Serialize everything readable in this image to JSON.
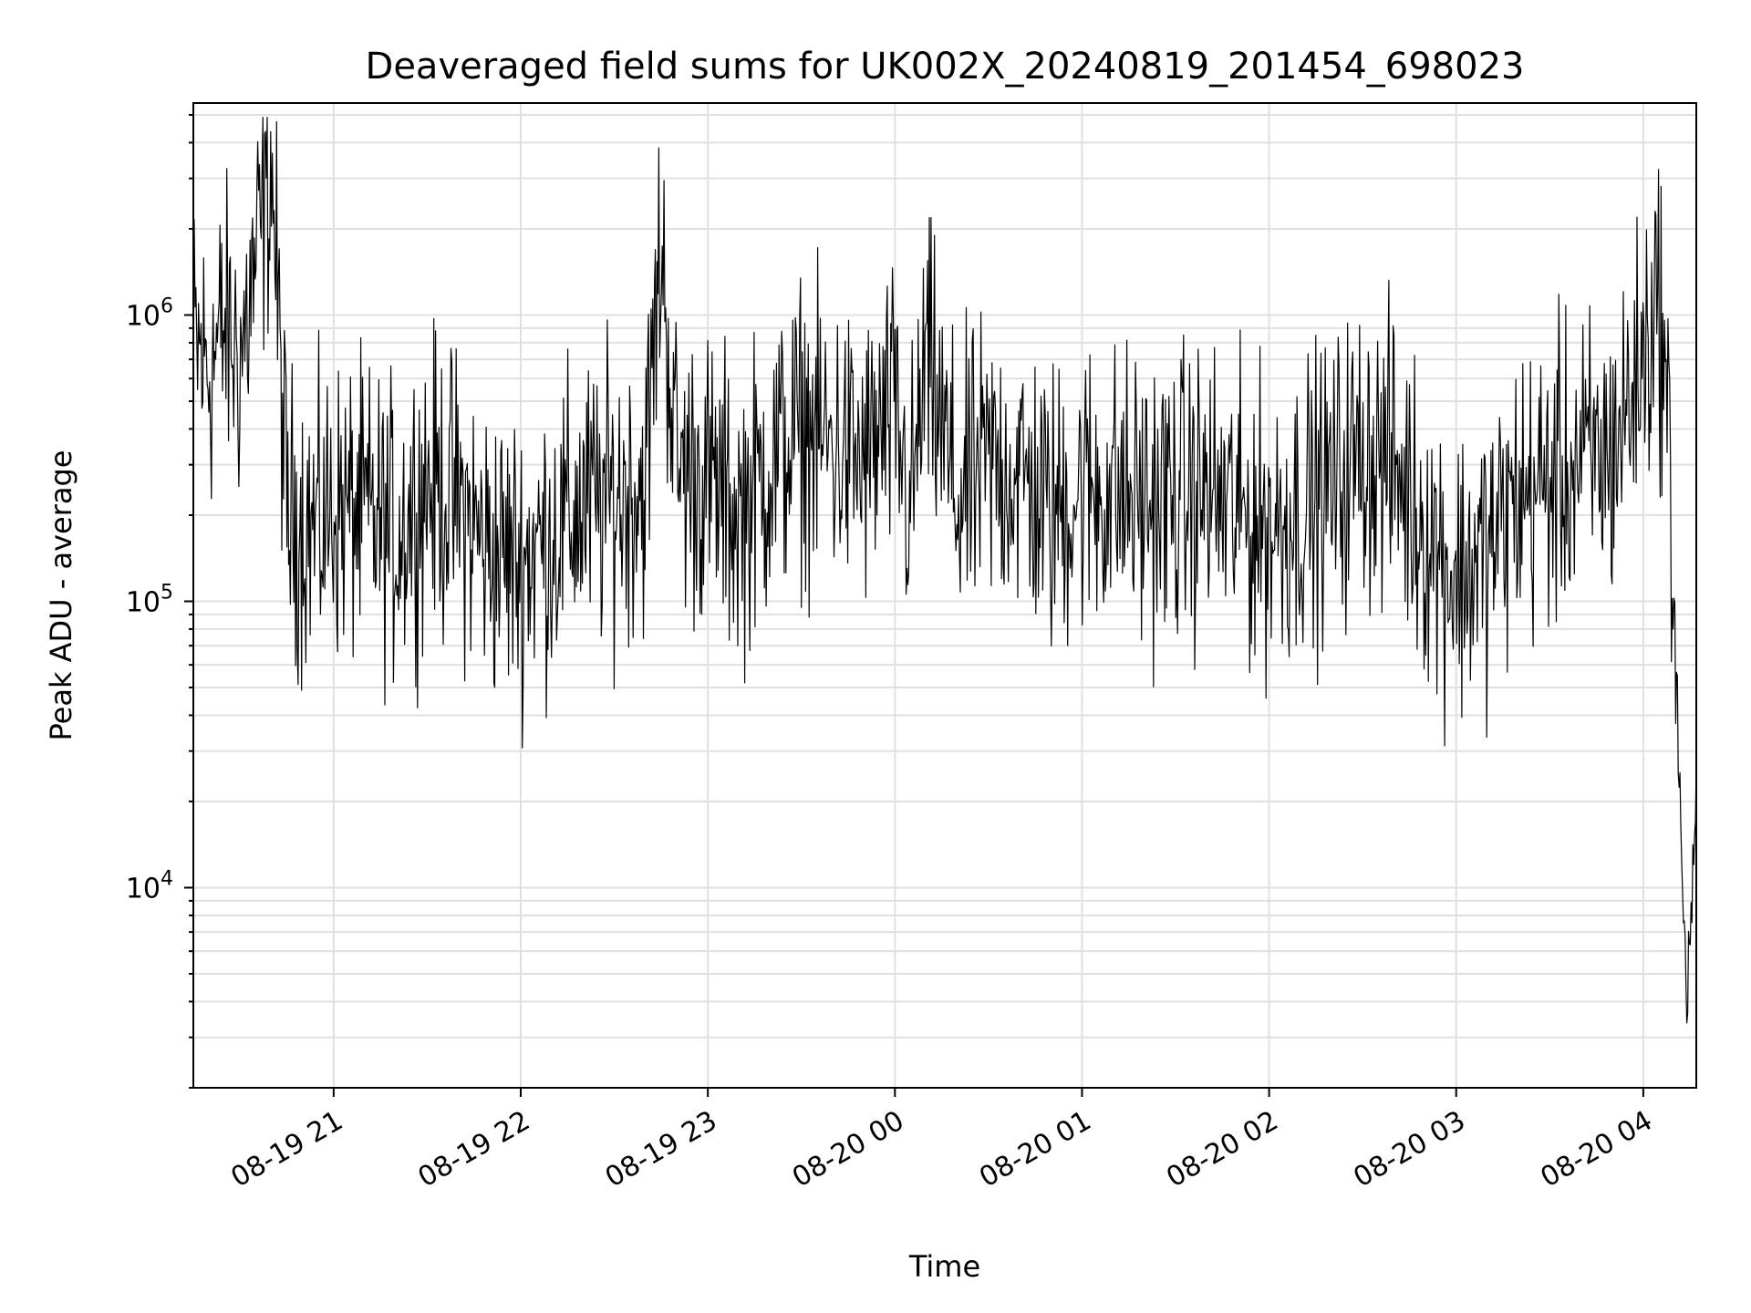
{
  "chart_data": {
    "type": "line",
    "title": "Deaveraged field sums for UK002X_20240819_201454_698023",
    "xlabel": "Time",
    "ylabel": "Peak ADU - average",
    "yscale": "log",
    "ylim": [
      2000,
      5500000
    ],
    "xlim": [
      "2024-08-19 20:15",
      "2024-08-20 04:17"
    ],
    "grid": true,
    "line_color": "#000000",
    "grid_color": "#e0e0e0",
    "x_ticks": [
      {
        "time": "2024-08-19 21:00",
        "label": "08-19 21"
      },
      {
        "time": "2024-08-19 22:00",
        "label": "08-19 22"
      },
      {
        "time": "2024-08-19 23:00",
        "label": "08-19 23"
      },
      {
        "time": "2024-08-20 00:00",
        "label": "08-20 00"
      },
      {
        "time": "2024-08-20 01:00",
        "label": "08-20 01"
      },
      {
        "time": "2024-08-20 02:00",
        "label": "08-20 02"
      },
      {
        "time": "2024-08-20 03:00",
        "label": "08-20 03"
      },
      {
        "time": "2024-08-20 04:00",
        "label": "08-20 04"
      }
    ],
    "y_ticks": [
      {
        "value": 10000,
        "base": "10",
        "exp": "4"
      },
      {
        "value": 100000,
        "base": "10",
        "exp": "5"
      },
      {
        "value": 1000000,
        "base": "10",
        "exp": "6"
      }
    ],
    "series": [
      {
        "x": [
          "2024-08-19 20:15",
          "2024-08-19 20:20",
          "2024-08-19 20:25",
          "2024-08-19 20:30",
          "2024-08-19 20:35",
          "2024-08-19 20:40",
          "2024-08-19 20:45",
          "2024-08-19 20:50",
          "2024-08-19 20:55",
          "2024-08-19 21:00",
          "2024-08-19 21:10",
          "2024-08-19 21:20",
          "2024-08-19 21:30",
          "2024-08-19 21:40",
          "2024-08-19 21:50",
          "2024-08-19 22:00",
          "2024-08-19 22:10",
          "2024-08-19 22:20",
          "2024-08-19 22:30",
          "2024-08-19 22:40",
          "2024-08-19 22:45",
          "2024-08-19 22:50",
          "2024-08-19 23:00",
          "2024-08-19 23:10",
          "2024-08-19 23:20",
          "2024-08-19 23:30",
          "2024-08-19 23:40",
          "2024-08-19 23:50",
          "2024-08-20 00:00",
          "2024-08-20 00:05",
          "2024-08-20 00:10",
          "2024-08-20 00:20",
          "2024-08-20 00:30",
          "2024-08-20 00:40",
          "2024-08-20 00:50",
          "2024-08-20 01:00",
          "2024-08-20 01:10",
          "2024-08-20 01:20",
          "2024-08-20 01:30",
          "2024-08-20 01:40",
          "2024-08-20 01:50",
          "2024-08-20 02:00",
          "2024-08-20 02:10",
          "2024-08-20 02:20",
          "2024-08-20 02:30",
          "2024-08-20 02:40",
          "2024-08-20 02:50",
          "2024-08-20 03:00",
          "2024-08-20 03:10",
          "2024-08-20 03:20",
          "2024-08-20 03:30",
          "2024-08-20 03:40",
          "2024-08-20 03:50",
          "2024-08-20 04:00",
          "2024-08-20 04:05",
          "2024-08-20 04:08",
          "2024-08-20 04:10",
          "2024-08-20 04:12",
          "2024-08-20 04:14",
          "2024-08-20 04:17"
        ],
        "y": [
          800000,
          650000,
          900000,
          700000,
          1500000,
          3500000,
          200000,
          190000,
          180000,
          210000,
          200000,
          170000,
          260000,
          220000,
          150000,
          140000,
          170000,
          210000,
          230000,
          260000,
          1800000,
          300000,
          260000,
          200000,
          300000,
          400000,
          350000,
          300000,
          450000,
          200000,
          700000,
          220000,
          300000,
          280000,
          200000,
          250000,
          240000,
          220000,
          230000,
          240000,
          200000,
          180000,
          210000,
          250000,
          330000,
          300000,
          180000,
          120000,
          150000,
          230000,
          260000,
          300000,
          330000,
          700000,
          1200000,
          400000,
          100000,
          15000,
          4000,
          20000
        ]
      }
    ]
  }
}
